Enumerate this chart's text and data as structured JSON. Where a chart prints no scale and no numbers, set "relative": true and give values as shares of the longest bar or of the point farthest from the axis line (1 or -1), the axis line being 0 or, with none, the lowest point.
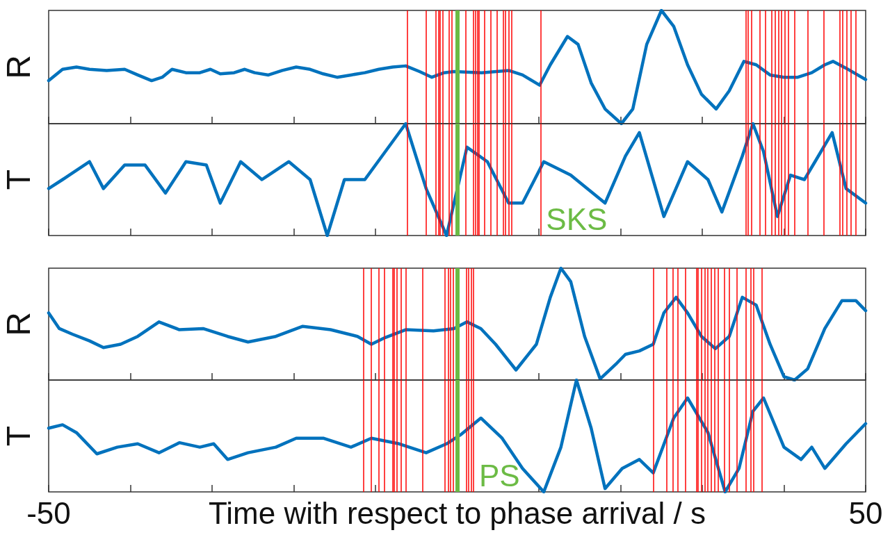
{
  "chart_data": [
    {
      "type": "line",
      "relative": true,
      "ylabel": "R",
      "xlim": [
        -50,
        50
      ],
      "tick_labels": false,
      "xticks": [
        -50,
        -40,
        -30,
        -20,
        -10,
        0,
        10,
        20,
        30,
        40,
        50
      ],
      "series": [
        {
          "color": "#0072bd",
          "x": [
            -50.0,
            -48.3,
            -46.6,
            -45.0,
            -42.9,
            -40.7,
            -39.1,
            -37.4,
            -36.1,
            -34.9,
            -33.2,
            -31.5,
            -30.2,
            -29.0,
            -27.3,
            -26.0,
            -24.8,
            -23.1,
            -21.4,
            -19.7,
            -18.0,
            -16.4,
            -14.7,
            -13.0,
            -11.3,
            -9.6,
            -7.9,
            -6.3,
            -4.6,
            -3.1,
            -1.6,
            -0.4,
            3.0,
            6.3,
            8.0,
            10.1,
            11.4,
            13.5,
            14.8,
            16.4,
            18.1,
            20.1,
            21.5,
            23.2,
            25.0,
            26.5,
            28.2,
            29.9,
            31.7,
            33.3,
            35.1,
            36.6,
            38.3,
            40.0,
            41.7,
            43.4,
            45.0,
            46.0,
            47.6,
            50.0
          ],
          "values": [
            0.38,
            0.48,
            0.5,
            0.48,
            0.47,
            0.48,
            0.43,
            0.38,
            0.41,
            0.48,
            0.45,
            0.45,
            0.48,
            0.44,
            0.45,
            0.48,
            0.45,
            0.43,
            0.47,
            0.5,
            0.48,
            0.44,
            0.41,
            0.43,
            0.45,
            0.48,
            0.5,
            0.51,
            0.46,
            0.41,
            0.45,
            0.46,
            0.45,
            0.47,
            0.43,
            0.34,
            0.52,
            0.77,
            0.7,
            0.36,
            0.13,
            0.0,
            0.13,
            0.7,
            1.0,
            0.86,
            0.52,
            0.26,
            0.13,
            0.29,
            0.55,
            0.52,
            0.43,
            0.41,
            0.41,
            0.45,
            0.52,
            0.55,
            0.49,
            0.39
          ]
        }
      ],
      "ref_lines": [
        {
          "axis": "x",
          "value": -6.1,
          "color": "#ff0000"
        },
        {
          "axis": "x",
          "value": -3.8,
          "color": "#ff0000"
        },
        {
          "axis": "x",
          "value": -2.6,
          "color": "#ff0000"
        },
        {
          "axis": "x",
          "value": -2.3,
          "color": "#ff0000"
        },
        {
          "axis": "x",
          "value": -2.1,
          "color": "#ff0000"
        },
        {
          "axis": "x",
          "value": -1.8,
          "color": "#ff0000"
        },
        {
          "axis": "x",
          "value": -1.0,
          "color": "#ff0000"
        },
        {
          "axis": "x",
          "value": -0.7,
          "color": "#ff0000"
        },
        {
          "axis": "x",
          "value": 1.0,
          "color": "#ff0000"
        },
        {
          "axis": "x",
          "value": 2.0,
          "color": "#ff0000"
        },
        {
          "axis": "x",
          "value": 2.2,
          "color": "#ff0000"
        },
        {
          "axis": "x",
          "value": 2.5,
          "color": "#ff0000"
        },
        {
          "axis": "x",
          "value": 2.7,
          "color": "#ff0000"
        },
        {
          "axis": "x",
          "value": 3.3,
          "color": "#ff0000"
        },
        {
          "axis": "x",
          "value": 4.1,
          "color": "#ff0000"
        },
        {
          "axis": "x",
          "value": 4.9,
          "color": "#ff0000"
        },
        {
          "axis": "x",
          "value": 5.6,
          "color": "#ff0000"
        },
        {
          "axis": "x",
          "value": 5.9,
          "color": "#ff0000"
        },
        {
          "axis": "x",
          "value": 6.3,
          "color": "#ff0000"
        },
        {
          "axis": "x",
          "value": 6.7,
          "color": "#ff0000"
        },
        {
          "axis": "x",
          "value": 10.2,
          "color": "#ff0000"
        },
        {
          "axis": "x",
          "value": 35.3,
          "color": "#ff0000"
        },
        {
          "axis": "x",
          "value": 35.6,
          "color": "#ff0000"
        },
        {
          "axis": "x",
          "value": 36.0,
          "color": "#ff0000"
        },
        {
          "axis": "x",
          "value": 37.0,
          "color": "#ff0000"
        },
        {
          "axis": "x",
          "value": 37.7,
          "color": "#ff0000"
        },
        {
          "axis": "x",
          "value": 38.5,
          "color": "#ff0000"
        },
        {
          "axis": "x",
          "value": 38.9,
          "color": "#ff0000"
        },
        {
          "axis": "x",
          "value": 39.3,
          "color": "#ff0000"
        },
        {
          "axis": "x",
          "value": 39.7,
          "color": "#ff0000"
        },
        {
          "axis": "x",
          "value": 40.1,
          "color": "#ff0000"
        },
        {
          "axis": "x",
          "value": 40.5,
          "color": "#ff0000"
        },
        {
          "axis": "x",
          "value": 41.3,
          "color": "#ff0000"
        },
        {
          "axis": "x",
          "value": 42.9,
          "color": "#ff0000"
        },
        {
          "axis": "x",
          "value": 44.9,
          "color": "#ff0000"
        },
        {
          "axis": "x",
          "value": 46.8,
          "color": "#ff0000"
        },
        {
          "axis": "x",
          "value": 47.2,
          "color": "#ff0000"
        },
        {
          "axis": "x",
          "value": 47.7,
          "color": "#ff0000"
        },
        {
          "axis": "x",
          "value": 48.2,
          "color": "#ff0000"
        },
        {
          "axis": "x",
          "value": 48.8,
          "color": "#ff0000"
        },
        {
          "axis": "x",
          "value": 0,
          "color": "#6cbb45"
        }
      ]
    },
    {
      "type": "line",
      "relative": true,
      "ylabel": "T",
      "xlim": [
        -50,
        50
      ],
      "tick_labels": false,
      "xticks": [
        -50,
        -40,
        -30,
        -20,
        -10,
        0,
        10,
        20,
        30,
        40,
        50
      ],
      "series": [
        {
          "color": "#0072bd",
          "x": [
            -50.0,
            -48.3,
            -45.0,
            -43.3,
            -40.7,
            -38.2,
            -35.7,
            -33.2,
            -30.7,
            -29.0,
            -26.5,
            -23.9,
            -20.6,
            -18.0,
            -15.9,
            -13.8,
            -11.3,
            -8.8,
            -6.3,
            -3.8,
            -1.3,
            1.2,
            3.7,
            6.3,
            8.0,
            10.6,
            13.9,
            18.1,
            20.6,
            22.3,
            25.3,
            28.2,
            30.7,
            32.4,
            34.9,
            36.2,
            37.5,
            39.2,
            40.8,
            42.5,
            43.8,
            45.9,
            47.6,
            50.0
          ],
          "values": [
            0.42,
            0.5,
            0.66,
            0.42,
            0.63,
            0.63,
            0.38,
            0.66,
            0.63,
            0.29,
            0.66,
            0.5,
            0.66,
            0.5,
            0.0,
            0.5,
            0.5,
            0.75,
            1.0,
            0.42,
            0.0,
            0.79,
            0.66,
            0.29,
            0.29,
            0.66,
            0.54,
            0.29,
            0.71,
            0.92,
            0.17,
            0.66,
            0.5,
            0.21,
            0.71,
            1.0,
            0.75,
            0.17,
            0.54,
            0.5,
            0.66,
            0.92,
            0.42,
            0.29
          ]
        }
      ],
      "ref_lines": [
        {
          "axis": "x",
          "value": -6.1,
          "color": "#ff0000"
        },
        {
          "axis": "x",
          "value": -3.8,
          "color": "#ff0000"
        },
        {
          "axis": "x",
          "value": -2.6,
          "color": "#ff0000"
        },
        {
          "axis": "x",
          "value": -2.3,
          "color": "#ff0000"
        },
        {
          "axis": "x",
          "value": -2.1,
          "color": "#ff0000"
        },
        {
          "axis": "x",
          "value": -1.8,
          "color": "#ff0000"
        },
        {
          "axis": "x",
          "value": -1.0,
          "color": "#ff0000"
        },
        {
          "axis": "x",
          "value": -0.7,
          "color": "#ff0000"
        },
        {
          "axis": "x",
          "value": 1.0,
          "color": "#ff0000"
        },
        {
          "axis": "x",
          "value": 2.0,
          "color": "#ff0000"
        },
        {
          "axis": "x",
          "value": 2.2,
          "color": "#ff0000"
        },
        {
          "axis": "x",
          "value": 2.5,
          "color": "#ff0000"
        },
        {
          "axis": "x",
          "value": 2.7,
          "color": "#ff0000"
        },
        {
          "axis": "x",
          "value": 3.3,
          "color": "#ff0000"
        },
        {
          "axis": "x",
          "value": 4.1,
          "color": "#ff0000"
        },
        {
          "axis": "x",
          "value": 4.9,
          "color": "#ff0000"
        },
        {
          "axis": "x",
          "value": 5.6,
          "color": "#ff0000"
        },
        {
          "axis": "x",
          "value": 5.9,
          "color": "#ff0000"
        },
        {
          "axis": "x",
          "value": 6.3,
          "color": "#ff0000"
        },
        {
          "axis": "x",
          "value": 6.7,
          "color": "#ff0000"
        },
        {
          "axis": "x",
          "value": 10.2,
          "color": "#ff0000"
        },
        {
          "axis": "x",
          "value": 35.3,
          "color": "#ff0000"
        },
        {
          "axis": "x",
          "value": 35.6,
          "color": "#ff0000"
        },
        {
          "axis": "x",
          "value": 36.0,
          "color": "#ff0000"
        },
        {
          "axis": "x",
          "value": 37.0,
          "color": "#ff0000"
        },
        {
          "axis": "x",
          "value": 37.7,
          "color": "#ff0000"
        },
        {
          "axis": "x",
          "value": 38.5,
          "color": "#ff0000"
        },
        {
          "axis": "x",
          "value": 38.9,
          "color": "#ff0000"
        },
        {
          "axis": "x",
          "value": 39.3,
          "color": "#ff0000"
        },
        {
          "axis": "x",
          "value": 39.7,
          "color": "#ff0000"
        },
        {
          "axis": "x",
          "value": 40.1,
          "color": "#ff0000"
        },
        {
          "axis": "x",
          "value": 40.5,
          "color": "#ff0000"
        },
        {
          "axis": "x",
          "value": 41.3,
          "color": "#ff0000"
        },
        {
          "axis": "x",
          "value": 42.9,
          "color": "#ff0000"
        },
        {
          "axis": "x",
          "value": 44.9,
          "color": "#ff0000"
        },
        {
          "axis": "x",
          "value": 46.8,
          "color": "#ff0000"
        },
        {
          "axis": "x",
          "value": 47.2,
          "color": "#ff0000"
        },
        {
          "axis": "x",
          "value": 47.7,
          "color": "#ff0000"
        },
        {
          "axis": "x",
          "value": 48.2,
          "color": "#ff0000"
        },
        {
          "axis": "x",
          "value": 48.8,
          "color": "#ff0000"
        },
        {
          "axis": "x",
          "value": 0,
          "color": "#6cbb45",
          "label": "SKS"
        }
      ]
    },
    {
      "type": "line",
      "relative": true,
      "ylabel": "R",
      "xlim": [
        -50,
        50
      ],
      "tick_labels": false,
      "xticks": [
        -50,
        -40,
        -30,
        -20,
        -10,
        0,
        10,
        20,
        30,
        40,
        50
      ],
      "series": [
        {
          "color": "#0072bd",
          "x": [
            -50.0,
            -48.7,
            -47.1,
            -45.0,
            -43.3,
            -41.2,
            -39.1,
            -36.5,
            -34.0,
            -31.1,
            -28.1,
            -25.6,
            -22.2,
            -18.9,
            -15.5,
            -12.2,
            -10.5,
            -8.8,
            -6.3,
            -2.9,
            -0.4,
            1.2,
            2.9,
            4.7,
            7.2,
            9.7,
            11.4,
            12.7,
            13.9,
            15.6,
            17.5,
            19.4,
            20.6,
            22.3,
            24.0,
            25.3,
            26.8,
            28.2,
            29.9,
            31.6,
            33.3,
            34.9,
            36.6,
            38.3,
            40.0,
            41.3,
            42.9,
            45.0,
            47.1,
            48.8,
            50.0
          ],
          "values": [
            0.6,
            0.46,
            0.41,
            0.35,
            0.29,
            0.32,
            0.39,
            0.52,
            0.45,
            0.46,
            0.39,
            0.34,
            0.39,
            0.48,
            0.45,
            0.39,
            0.32,
            0.38,
            0.45,
            0.44,
            0.46,
            0.52,
            0.46,
            0.32,
            0.09,
            0.32,
            0.74,
            1.0,
            0.88,
            0.39,
            0.01,
            0.14,
            0.23,
            0.26,
            0.32,
            0.6,
            0.74,
            0.6,
            0.39,
            0.28,
            0.39,
            0.74,
            0.67,
            0.32,
            0.03,
            0.0,
            0.1,
            0.46,
            0.71,
            0.71,
            0.62
          ]
        }
      ],
      "ref_lines": [
        {
          "axis": "x",
          "value": -11.5,
          "color": "#ff0000"
        },
        {
          "axis": "x",
          "value": -10.5,
          "color": "#ff0000"
        },
        {
          "axis": "x",
          "value": -9.6,
          "color": "#ff0000"
        },
        {
          "axis": "x",
          "value": -8.9,
          "color": "#ff0000"
        },
        {
          "axis": "x",
          "value": -7.9,
          "color": "#ff0000"
        },
        {
          "axis": "x",
          "value": -7.7,
          "color": "#ff0000"
        },
        {
          "axis": "x",
          "value": -7.4,
          "color": "#ff0000"
        },
        {
          "axis": "x",
          "value": -6.9,
          "color": "#ff0000"
        },
        {
          "axis": "x",
          "value": -6.3,
          "color": "#ff0000"
        },
        {
          "axis": "x",
          "value": -4.2,
          "color": "#ff0000"
        },
        {
          "axis": "x",
          "value": -1.5,
          "color": "#ff0000"
        },
        {
          "axis": "x",
          "value": -1.1,
          "color": "#ff0000"
        },
        {
          "axis": "x",
          "value": -0.8,
          "color": "#ff0000"
        },
        {
          "axis": "x",
          "value": -0.5,
          "color": "#ff0000"
        },
        {
          "axis": "x",
          "value": 1.1,
          "color": "#ff0000"
        },
        {
          "axis": "x",
          "value": 1.4,
          "color": "#ff0000"
        },
        {
          "axis": "x",
          "value": 1.7,
          "color": "#ff0000"
        },
        {
          "axis": "x",
          "value": 2.0,
          "color": "#ff0000"
        },
        {
          "axis": "x",
          "value": 24.0,
          "color": "#ff0000"
        },
        {
          "axis": "x",
          "value": 25.6,
          "color": "#ff0000"
        },
        {
          "axis": "x",
          "value": 26.4,
          "color": "#ff0000"
        },
        {
          "axis": "x",
          "value": 27.0,
          "color": "#ff0000"
        },
        {
          "axis": "x",
          "value": 27.9,
          "color": "#ff0000"
        },
        {
          "axis": "x",
          "value": 29.3,
          "color": "#ff0000"
        },
        {
          "axis": "x",
          "value": 29.5,
          "color": "#ff0000"
        },
        {
          "axis": "x",
          "value": 29.9,
          "color": "#ff0000"
        },
        {
          "axis": "x",
          "value": 30.3,
          "color": "#ff0000"
        },
        {
          "axis": "x",
          "value": 30.7,
          "color": "#ff0000"
        },
        {
          "axis": "x",
          "value": 31.1,
          "color": "#ff0000"
        },
        {
          "axis": "x",
          "value": 31.5,
          "color": "#ff0000"
        },
        {
          "axis": "x",
          "value": 31.9,
          "color": "#ff0000"
        },
        {
          "axis": "x",
          "value": 32.7,
          "color": "#ff0000"
        },
        {
          "axis": "x",
          "value": 33.3,
          "color": "#ff0000"
        },
        {
          "axis": "x",
          "value": 34.2,
          "color": "#ff0000"
        },
        {
          "axis": "x",
          "value": 35.3,
          "color": "#ff0000"
        },
        {
          "axis": "x",
          "value": 35.9,
          "color": "#ff0000"
        },
        {
          "axis": "x",
          "value": 36.3,
          "color": "#ff0000"
        },
        {
          "axis": "x",
          "value": 37.3,
          "color": "#ff0000"
        },
        {
          "axis": "x",
          "value": 0,
          "color": "#6cbb45"
        }
      ]
    },
    {
      "type": "line",
      "relative": true,
      "ylabel": "T",
      "xlim": [
        -50,
        50
      ],
      "tick_labels": "x",
      "xlabel": "Time with respect to phase arrival / s",
      "xticks": [
        {
          "value": -50,
          "label": "-50"
        },
        {
          "value": -40,
          "label": null
        },
        {
          "value": -30,
          "label": null
        },
        {
          "value": -20,
          "label": null
        },
        {
          "value": -10,
          "label": null
        },
        {
          "value": 0,
          "label": null
        },
        {
          "value": 10,
          "label": null
        },
        {
          "value": 20,
          "label": null
        },
        {
          "value": 30,
          "label": null
        },
        {
          "value": 40,
          "label": null
        },
        {
          "value": 50,
          "label": "50"
        }
      ],
      "series": [
        {
          "color": "#0072bd",
          "x": [
            -50.0,
            -48.3,
            -46.6,
            -44.1,
            -41.6,
            -39.1,
            -36.5,
            -34.0,
            -31.5,
            -29.8,
            -28.1,
            -25.6,
            -22.2,
            -19.7,
            -16.4,
            -13.0,
            -10.5,
            -7.1,
            -3.8,
            -1.3,
            0.4,
            2.9,
            5.5,
            8.0,
            10.6,
            12.7,
            14.6,
            16.4,
            18.1,
            20.2,
            22.3,
            24.0,
            26.5,
            28.2,
            30.7,
            32.8,
            34.5,
            36.2,
            37.5,
            40.0,
            42.1,
            43.4,
            45.0,
            47.6,
            50.0
          ],
          "values": [
            0.57,
            0.6,
            0.53,
            0.34,
            0.4,
            0.43,
            0.35,
            0.44,
            0.4,
            0.43,
            0.29,
            0.35,
            0.4,
            0.48,
            0.48,
            0.4,
            0.48,
            0.43,
            0.35,
            0.43,
            0.51,
            0.66,
            0.48,
            0.21,
            0.0,
            0.4,
            1.0,
            0.57,
            0.03,
            0.21,
            0.29,
            0.17,
            0.66,
            0.84,
            0.53,
            0.0,
            0.21,
            0.72,
            0.84,
            0.4,
            0.29,
            0.4,
            0.21,
            0.43,
            0.61
          ]
        }
      ],
      "ref_lines": [
        {
          "axis": "x",
          "value": -11.5,
          "color": "#ff0000"
        },
        {
          "axis": "x",
          "value": -10.5,
          "color": "#ff0000"
        },
        {
          "axis": "x",
          "value": -9.6,
          "color": "#ff0000"
        },
        {
          "axis": "x",
          "value": -8.9,
          "color": "#ff0000"
        },
        {
          "axis": "x",
          "value": -7.9,
          "color": "#ff0000"
        },
        {
          "axis": "x",
          "value": -7.7,
          "color": "#ff0000"
        },
        {
          "axis": "x",
          "value": -7.4,
          "color": "#ff0000"
        },
        {
          "axis": "x",
          "value": -6.9,
          "color": "#ff0000"
        },
        {
          "axis": "x",
          "value": -6.3,
          "color": "#ff0000"
        },
        {
          "axis": "x",
          "value": -4.2,
          "color": "#ff0000"
        },
        {
          "axis": "x",
          "value": -1.5,
          "color": "#ff0000"
        },
        {
          "axis": "x",
          "value": -1.1,
          "color": "#ff0000"
        },
        {
          "axis": "x",
          "value": -0.8,
          "color": "#ff0000"
        },
        {
          "axis": "x",
          "value": -0.5,
          "color": "#ff0000"
        },
        {
          "axis": "x",
          "value": 1.1,
          "color": "#ff0000"
        },
        {
          "axis": "x",
          "value": 1.4,
          "color": "#ff0000"
        },
        {
          "axis": "x",
          "value": 1.7,
          "color": "#ff0000"
        },
        {
          "axis": "x",
          "value": 2.0,
          "color": "#ff0000"
        },
        {
          "axis": "x",
          "value": 24.0,
          "color": "#ff0000"
        },
        {
          "axis": "x",
          "value": 25.6,
          "color": "#ff0000"
        },
        {
          "axis": "x",
          "value": 26.4,
          "color": "#ff0000"
        },
        {
          "axis": "x",
          "value": 27.0,
          "color": "#ff0000"
        },
        {
          "axis": "x",
          "value": 27.9,
          "color": "#ff0000"
        },
        {
          "axis": "x",
          "value": 29.3,
          "color": "#ff0000"
        },
        {
          "axis": "x",
          "value": 29.5,
          "color": "#ff0000"
        },
        {
          "axis": "x",
          "value": 29.9,
          "color": "#ff0000"
        },
        {
          "axis": "x",
          "value": 30.3,
          "color": "#ff0000"
        },
        {
          "axis": "x",
          "value": 30.7,
          "color": "#ff0000"
        },
        {
          "axis": "x",
          "value": 31.1,
          "color": "#ff0000"
        },
        {
          "axis": "x",
          "value": 31.5,
          "color": "#ff0000"
        },
        {
          "axis": "x",
          "value": 31.9,
          "color": "#ff0000"
        },
        {
          "axis": "x",
          "value": 32.7,
          "color": "#ff0000"
        },
        {
          "axis": "x",
          "value": 33.3,
          "color": "#ff0000"
        },
        {
          "axis": "x",
          "value": 34.2,
          "color": "#ff0000"
        },
        {
          "axis": "x",
          "value": 35.3,
          "color": "#ff0000"
        },
        {
          "axis": "x",
          "value": 35.9,
          "color": "#ff0000"
        },
        {
          "axis": "x",
          "value": 36.3,
          "color": "#ff0000"
        },
        {
          "axis": "x",
          "value": 37.3,
          "color": "#ff0000"
        },
        {
          "axis": "x",
          "value": 0,
          "color": "#6cbb45",
          "label": "PS"
        }
      ]
    }
  ]
}
